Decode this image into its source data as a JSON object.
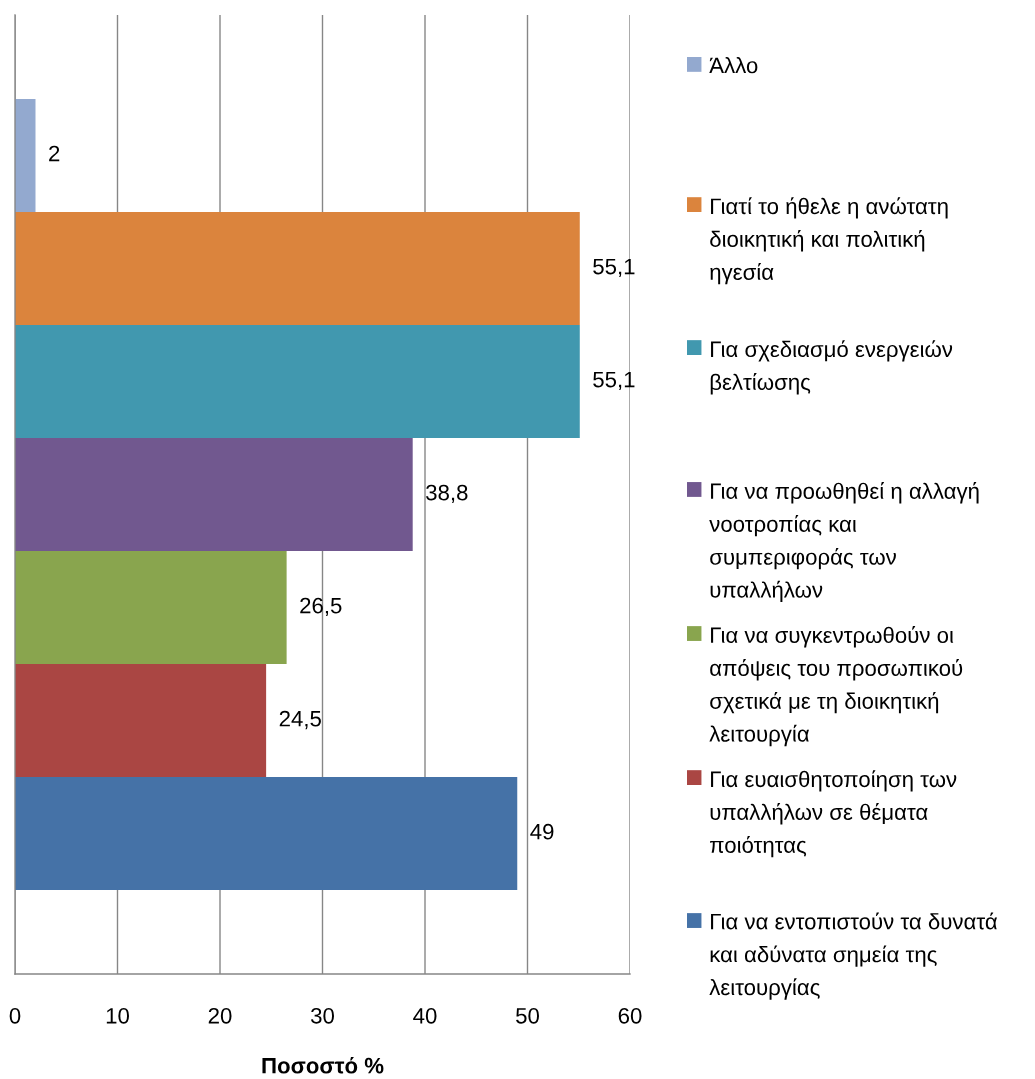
{
  "chart_data": {
    "type": "bar",
    "orientation": "horizontal",
    "categories": [
      null
    ],
    "series": [
      {
        "name": "Άλλο",
        "color": "#93a9cf",
        "values": [
          2
        ],
        "value_labels": [
          "2"
        ]
      },
      {
        "name": "Γιατί το ήθελε η ανώτατη\nδιοικητική και πολιτική\nηγεσία",
        "color": "#db843d",
        "values": [
          55.1
        ],
        "value_labels": [
          "55,1"
        ]
      },
      {
        "name": "Για σχεδιασμό ενεργειών\nβελτίωσης",
        "color": "#4198af",
        "values": [
          55.1
        ],
        "value_labels": [
          "55,1"
        ]
      },
      {
        "name": "Για να προωθηθεί η αλλαγή\nνοοτροπίας και\nσυμπεριφοράς των\nυπαλλήλων",
        "color": "#71588f",
        "values": [
          38.8
        ],
        "value_labels": [
          "38,8"
        ]
      },
      {
        "name": "Για να συγκεντρωθούν οι\nαπόψεις του προσωπικού\nσχετικά με τη διοικητική\nλειτουργία",
        "color": "#89a54e",
        "values": [
          26.5
        ],
        "value_labels": [
          "26,5"
        ]
      },
      {
        "name": "Για ευαισθητοποίηση των\nυπαλλήλων σε θέματα\nποιότητας",
        "color": "#aa4643",
        "values": [
          24.5
        ],
        "value_labels": [
          "24,5"
        ]
      },
      {
        "name": "Για να εντοπιστούν τα δυνατά\nκαι αδύνατα σημεία της\nλειτουργίας",
        "color": "#4572a7",
        "values": [
          49
        ],
        "value_labels": [
          "49"
        ]
      }
    ],
    "xlabel": "Ποσοστό %",
    "xlim": [
      0,
      60
    ],
    "xticks": [
      0,
      10,
      20,
      30,
      40,
      50,
      60
    ],
    "grid": "x",
    "legend": "right",
    "tick_labels": "x"
  }
}
